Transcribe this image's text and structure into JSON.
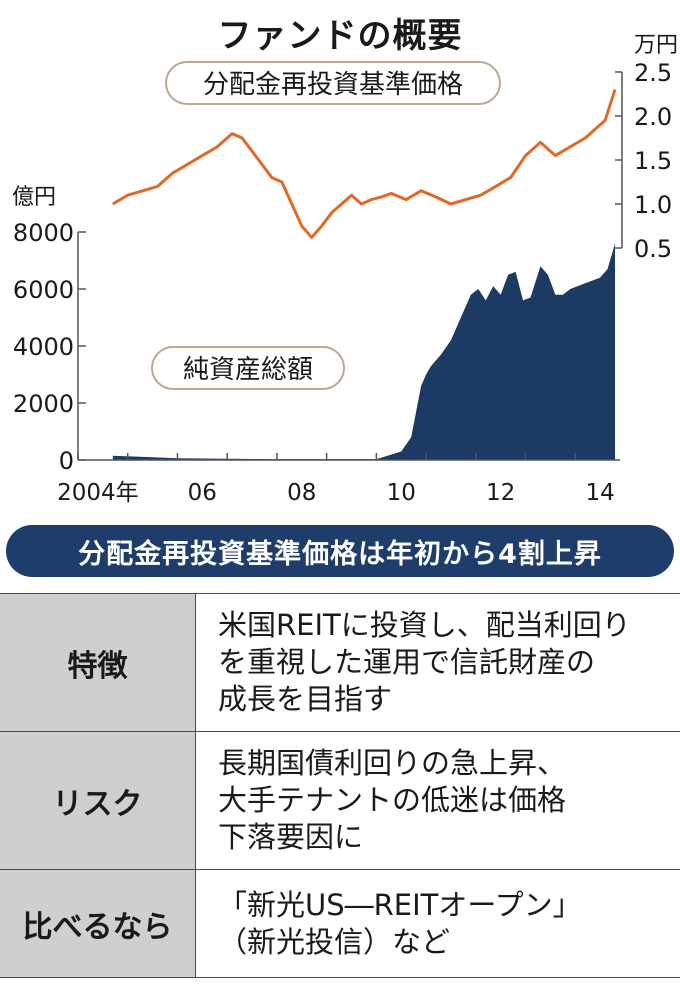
{
  "title": "ファンドの概要",
  "banner": "分配金再投資基準価格は年初から4割上昇",
  "chart_data": [
    {
      "type": "line",
      "title": "分配金再投資基準価格",
      "ylabel": "万円",
      "ylim": [
        0.5,
        2.5
      ],
      "yticks": [
        "0.5",
        "1.0",
        "1.5",
        "2.0",
        "2.5"
      ],
      "axis_side": "right",
      "color": "#e0692a",
      "x": [
        2004.7,
        2005.0,
        2005.3,
        2005.6,
        2005.9,
        2006.2,
        2006.5,
        2006.8,
        2007.1,
        2007.3,
        2007.5,
        2007.7,
        2007.9,
        2008.1,
        2008.3,
        2008.5,
        2008.7,
        2008.9,
        2009.1,
        2009.3,
        2009.5,
        2009.7,
        2009.9,
        2010.1,
        2010.3,
        2010.6,
        2010.9,
        2011.2,
        2011.5,
        2011.8,
        2012.1,
        2012.4,
        2012.7,
        2013.0,
        2013.3,
        2013.6,
        2013.9,
        2014.2,
        2014.4,
        2014.6,
        2014.8
      ],
      "y": [
        1.0,
        1.1,
        1.15,
        1.2,
        1.35,
        1.45,
        1.55,
        1.65,
        1.8,
        1.75,
        1.6,
        1.45,
        1.3,
        1.25,
        1.0,
        0.75,
        0.62,
        0.75,
        0.9,
        1.0,
        1.1,
        1.0,
        1.05,
        1.08,
        1.12,
        1.05,
        1.15,
        1.08,
        1.0,
        1.05,
        1.1,
        1.2,
        1.3,
        1.55,
        1.7,
        1.55,
        1.65,
        1.75,
        1.85,
        1.95,
        2.3
      ]
    },
    {
      "type": "area",
      "title": "純資産総額",
      "ylabel": "億円",
      "ylim": [
        0,
        8000
      ],
      "yticks": [
        "0",
        "2000",
        "4000",
        "6000",
        "8000"
      ],
      "axis_side": "left",
      "color": "#1c3a63",
      "x": [
        2004.7,
        2006.0,
        2008.0,
        2009.0,
        2010.0,
        2010.5,
        2010.7,
        2010.9,
        2011.0,
        2011.1,
        2011.3,
        2011.5,
        2011.7,
        2011.9,
        2012.05,
        2012.2,
        2012.35,
        2012.5,
        2012.65,
        2012.8,
        2012.95,
        2013.1,
        2013.3,
        2013.45,
        2013.6,
        2013.75,
        2013.9,
        2014.05,
        2014.2,
        2014.35,
        2014.5,
        2014.65,
        2014.8
      ],
      "y": [
        150,
        60,
        30,
        30,
        30,
        300,
        800,
        2600,
        3000,
        3300,
        3700,
        4200,
        5000,
        5800,
        6000,
        5600,
        6100,
        5800,
        6500,
        6600,
        5600,
        5700,
        6800,
        6500,
        5800,
        5800,
        6000,
        6100,
        6200,
        6300,
        6400,
        6700,
        7600
      ]
    }
  ],
  "x_tick_labels": [
    "2004年",
    "06",
    "08",
    "10",
    "12",
    "14"
  ],
  "rows": [
    {
      "label": "特徴",
      "lines": [
        "米国REITに投資し、配当利回り",
        "を重視した運用で信託財産の",
        "成長を目指す"
      ]
    },
    {
      "label": "リスク",
      "lines": [
        "長期国債利回りの急上昇、",
        "大手テナントの低迷は価格",
        "下落要因に"
      ]
    },
    {
      "label": "比べるなら",
      "lines": [
        "「新光US―REITオープン」",
        "（新光投信）など"
      ]
    }
  ]
}
